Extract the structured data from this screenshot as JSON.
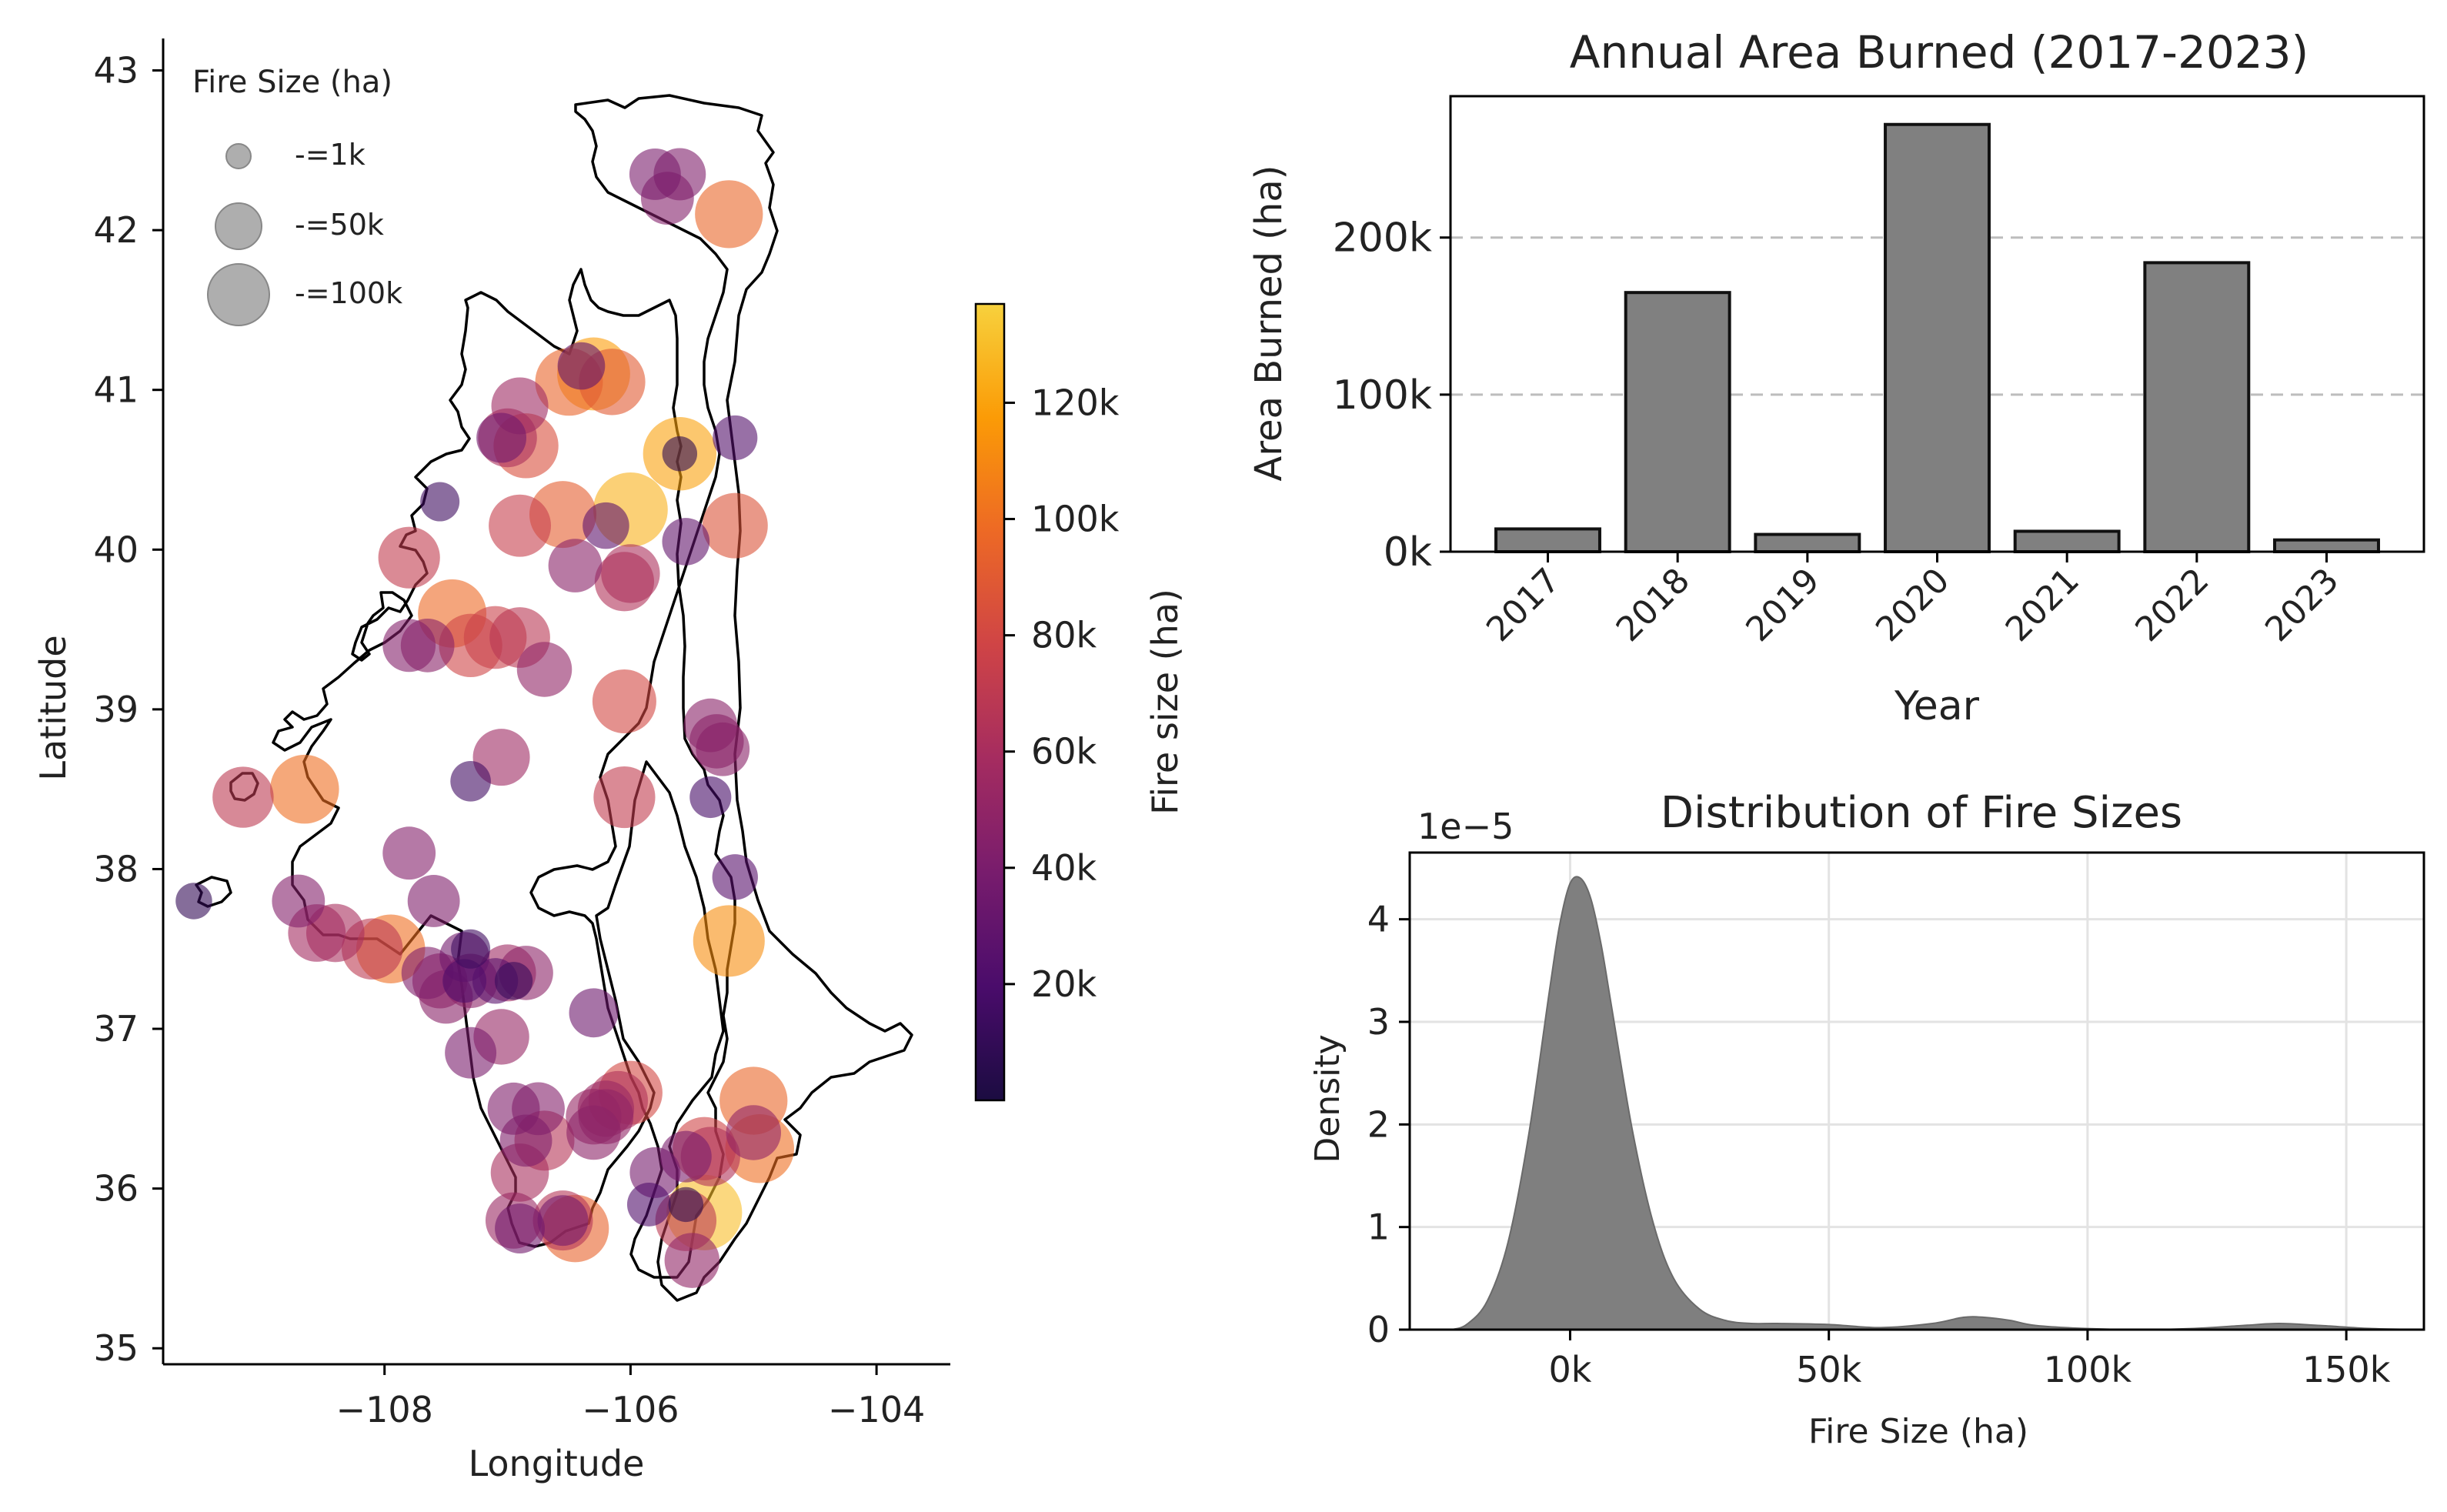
{
  "map": {
    "xlabel": "Longitude",
    "ylabel": "Latitude",
    "xlim": [
      -109.8,
      -103.4
    ],
    "ylim": [
      34.9,
      43.2
    ],
    "xticks": [
      -108,
      -106,
      -104
    ],
    "xtick_labels": [
      "−108",
      "−106",
      "−104"
    ],
    "yticks": [
      35,
      36,
      37,
      38,
      39,
      40,
      41,
      42,
      43
    ],
    "legend": {
      "title": "Fire Size (ha)",
      "entries": [
        "-=1k",
        "-=50k",
        "-=100k"
      ],
      "sizes_ha": [
        1000,
        50000,
        100000
      ]
    },
    "colorbar": {
      "label": "Fire size (ha)",
      "min": 0,
      "max": 137000,
      "ticks": [
        20000,
        40000,
        60000,
        80000,
        100000,
        120000
      ],
      "tick_labels": [
        "20k",
        "40k",
        "60k",
        "80k",
        "100k",
        "120k"
      ],
      "colormap": "inferno",
      "stops": [
        "#1b0c41",
        "#4a0c6b",
        "#781c6d",
        "#a52c60",
        "#cf4446",
        "#ed6925",
        "#fb9b06",
        "#f7d13d"
      ]
    }
  },
  "bar_chart": {
    "title": "Annual Area Burned (2017-2023)",
    "xlabel": "Year",
    "ylabel": "Area Burned (ha)",
    "yticks": [
      0,
      100000,
      200000
    ],
    "ytick_labels": [
      "0k",
      "100k",
      "200k"
    ],
    "bar_color": "#808080",
    "edge_color": "#111111"
  },
  "density_chart": {
    "title": "Distribution of Fire Sizes",
    "xlabel": "Fire Size (ha)",
    "ylabel": "Density",
    "offset_label": "1e−5",
    "xticks": [
      0,
      50000,
      100000,
      150000
    ],
    "xtick_labels": [
      "0k",
      "50k",
      "100k",
      "150k"
    ],
    "yticks": [
      0,
      1,
      2,
      3,
      4
    ],
    "ytick_labels": [
      "0",
      "1",
      "2",
      "3",
      "4"
    ],
    "fill_color": "#7f7f7f"
  },
  "chart_data": [
    {
      "type": "scatter",
      "x_label": "Longitude",
      "y_label": "Latitude",
      "points": [
        {
          "lon": -105.4,
          "lat": 35.85,
          "size": 130000
        },
        {
          "lon": -106.0,
          "lat": 40.25,
          "size": 125000
        },
        {
          "lon": -105.6,
          "lat": 40.6,
          "size": 120000
        },
        {
          "lon": -106.3,
          "lat": 41.1,
          "size": 118000
        },
        {
          "lon": -105.2,
          "lat": 37.55,
          "size": 112000
        },
        {
          "lon": -108.65,
          "lat": 38.5,
          "size": 100000
        },
        {
          "lon": -107.95,
          "lat": 37.5,
          "size": 100000
        },
        {
          "lon": -107.45,
          "lat": 39.6,
          "size": 98000
        },
        {
          "lon": -106.5,
          "lat": 41.05,
          "size": 95000
        },
        {
          "lon": -106.55,
          "lat": 40.22,
          "size": 92000
        },
        {
          "lon": -105.0,
          "lat": 36.55,
          "size": 96000
        },
        {
          "lon": -104.95,
          "lat": 36.25,
          "size": 100000
        },
        {
          "lon": -106.45,
          "lat": 35.75,
          "size": 94000
        },
        {
          "lon": -105.2,
          "lat": 42.1,
          "size": 96000
        },
        {
          "lon": -106.15,
          "lat": 41.05,
          "size": 90000
        },
        {
          "lon": -105.15,
          "lat": 40.15,
          "size": 86000
        },
        {
          "lon": -106.85,
          "lat": 40.65,
          "size": 84000
        },
        {
          "lon": -106.05,
          "lat": 39.05,
          "size": 80000
        },
        {
          "lon": -107.3,
          "lat": 39.4,
          "size": 78000
        },
        {
          "lon": -106.0,
          "lat": 36.6,
          "size": 80000
        },
        {
          "lon": -107.1,
          "lat": 39.45,
          "size": 76000
        },
        {
          "lon": -106.9,
          "lat": 40.15,
          "size": 74000
        },
        {
          "lon": -107.8,
          "lat": 39.95,
          "size": 72000
        },
        {
          "lon": -108.1,
          "lat": 37.5,
          "size": 70000
        },
        {
          "lon": -109.15,
          "lat": 38.45,
          "size": 70000
        },
        {
          "lon": -106.05,
          "lat": 38.45,
          "size": 72000
        },
        {
          "lon": -106.9,
          "lat": 39.45,
          "size": 68000
        },
        {
          "lon": -105.4,
          "lat": 36.25,
          "size": 78000
        },
        {
          "lon": -105.55,
          "lat": 35.8,
          "size": 70000
        },
        {
          "lon": -106.7,
          "lat": 36.3,
          "size": 66000
        },
        {
          "lon": -106.1,
          "lat": 36.55,
          "size": 64000
        },
        {
          "lon": -106.55,
          "lat": 35.8,
          "size": 66000
        },
        {
          "lon": -105.35,
          "lat": 36.2,
          "size": 64000
        },
        {
          "lon": -106.05,
          "lat": 39.8,
          "size": 64000
        },
        {
          "lon": -106.0,
          "lat": 39.85,
          "size": 62000
        },
        {
          "lon": -107.0,
          "lat": 40.7,
          "size": 62000
        },
        {
          "lon": -108.4,
          "lat": 37.6,
          "size": 60000
        },
        {
          "lon": -108.55,
          "lat": 37.6,
          "size": 58000
        },
        {
          "lon": -106.9,
          "lat": 36.1,
          "size": 60000
        },
        {
          "lon": -107.0,
          "lat": 37.35,
          "size": 56000
        },
        {
          "lon": -107.05,
          "lat": 38.7,
          "size": 56000
        },
        {
          "lon": -106.9,
          "lat": 40.9,
          "size": 56000
        },
        {
          "lon": -106.95,
          "lat": 35.8,
          "size": 54000
        },
        {
          "lon": -106.2,
          "lat": 36.5,
          "size": 54000
        },
        {
          "lon": -106.3,
          "lat": 36.45,
          "size": 52000
        },
        {
          "lon": -105.0,
          "lat": 36.35,
          "size": 50000
        },
        {
          "lon": -105.3,
          "lat": 38.8,
          "size": 48000
        },
        {
          "lon": -105.35,
          "lat": 38.9,
          "size": 46000
        },
        {
          "lon": -105.25,
          "lat": 38.75,
          "size": 46000
        },
        {
          "lon": -105.5,
          "lat": 35.55,
          "size": 50000
        },
        {
          "lon": -106.3,
          "lat": 36.35,
          "size": 48000
        },
        {
          "lon": -106.2,
          "lat": 36.45,
          "size": 50000
        },
        {
          "lon": -107.05,
          "lat": 36.95,
          "size": 52000
        },
        {
          "lon": -107.55,
          "lat": 37.3,
          "size": 50000
        },
        {
          "lon": -107.3,
          "lat": 37.3,
          "size": 48000
        },
        {
          "lon": -106.85,
          "lat": 37.35,
          "size": 48000
        },
        {
          "lon": -107.5,
          "lat": 37.2,
          "size": 46000
        },
        {
          "lon": -106.45,
          "lat": 39.9,
          "size": 46000
        },
        {
          "lon": -106.7,
          "lat": 39.25,
          "size": 50000
        },
        {
          "lon": -107.65,
          "lat": 39.4,
          "size": 46000
        },
        {
          "lon": -107.8,
          "lat": 39.4,
          "size": 44000
        },
        {
          "lon": -107.8,
          "lat": 38.1,
          "size": 44000
        },
        {
          "lon": -108.7,
          "lat": 37.8,
          "size": 44000
        },
        {
          "lon": -107.6,
          "lat": 37.8,
          "size": 42000
        },
        {
          "lon": -107.65,
          "lat": 37.35,
          "size": 42000
        },
        {
          "lon": -107.35,
          "lat": 37.45,
          "size": 36000
        },
        {
          "lon": -106.95,
          "lat": 36.5,
          "size": 42000
        },
        {
          "lon": -106.75,
          "lat": 36.5,
          "size": 44000
        },
        {
          "lon": -106.85,
          "lat": 36.3,
          "size": 42000
        },
        {
          "lon": -107.3,
          "lat": 36.85,
          "size": 40000
        },
        {
          "lon": -106.3,
          "lat": 37.1,
          "size": 34000
        },
        {
          "lon": -105.55,
          "lat": 36.2,
          "size": 40000
        },
        {
          "lon": -105.8,
          "lat": 36.1,
          "size": 38000
        },
        {
          "lon": -106.9,
          "lat": 35.75,
          "size": 36000
        },
        {
          "lon": -106.55,
          "lat": 35.8,
          "size": 38000
        },
        {
          "lon": -105.7,
          "lat": 42.2,
          "size": 44000
        },
        {
          "lon": -105.8,
          "lat": 42.35,
          "size": 40000
        },
        {
          "lon": -105.6,
          "lat": 42.35,
          "size": 42000
        },
        {
          "lon": -107.05,
          "lat": 40.7,
          "size": 36000
        },
        {
          "lon": -106.4,
          "lat": 41.15,
          "size": 30000
        },
        {
          "lon": -105.55,
          "lat": 40.05,
          "size": 30000
        },
        {
          "lon": -106.2,
          "lat": 40.15,
          "size": 28000
        },
        {
          "lon": -105.15,
          "lat": 40.7,
          "size": 24000
        },
        {
          "lon": -107.35,
          "lat": 37.3,
          "size": 22000
        },
        {
          "lon": -107.3,
          "lat": 38.55,
          "size": 16000
        },
        {
          "lon": -105.15,
          "lat": 37.95,
          "size": 26000
        },
        {
          "lon": -105.35,
          "lat": 38.45,
          "size": 18000
        },
        {
          "lon": -105.85,
          "lat": 35.9,
          "size": 22000
        },
        {
          "lon": -107.1,
          "lat": 37.3,
          "size": 26000
        },
        {
          "lon": -105.6,
          "lat": 40.6,
          "size": 8000
        },
        {
          "lon": -105.55,
          "lat": 35.9,
          "size": 8000
        },
        {
          "lon": -106.95,
          "lat": 37.3,
          "size": 12000
        },
        {
          "lon": -107.3,
          "lat": 37.5,
          "size": 14000
        },
        {
          "lon": -107.55,
          "lat": 40.3,
          "size": 14000
        },
        {
          "lon": -109.55,
          "lat": 37.8,
          "size": 10000
        }
      ]
    },
    {
      "type": "bar",
      "title": "Annual Area Burned (2017-2023)",
      "xlabel": "Year",
      "ylabel": "Area Burned (ha)",
      "categories": [
        "2017",
        "2018",
        "2019",
        "2020",
        "2021",
        "2022",
        "2023"
      ],
      "values": [
        14500,
        165000,
        11000,
        272000,
        13000,
        184000,
        7500
      ],
      "ylim": [
        0,
        290000
      ],
      "grid": "y dashed at 100k, 200k"
    },
    {
      "type": "area",
      "title": "Distribution of Fire Sizes",
      "xlabel": "Fire Size (ha)",
      "ylabel": "Density",
      "x": [
        -23000,
        -20000,
        -16000,
        -12000,
        -8000,
        -4000,
        -2000,
        0,
        2000,
        4000,
        6000,
        8000,
        12000,
        16000,
        20000,
        25000,
        30000,
        35000,
        40000,
        50000,
        60000,
        70000,
        76000,
        80000,
        85000,
        90000,
        100000,
        110000,
        120000,
        130000,
        137000,
        145000,
        155000,
        165000
      ],
      "y": [
        0.0,
        0.05,
        0.28,
        0.85,
        1.9,
        3.3,
        3.95,
        4.35,
        4.4,
        4.2,
        3.75,
        3.15,
        1.95,
        1.05,
        0.5,
        0.2,
        0.09,
        0.06,
        0.06,
        0.05,
        0.02,
        0.06,
        0.12,
        0.12,
        0.09,
        0.04,
        0.01,
        0.0,
        0.01,
        0.04,
        0.06,
        0.04,
        0.01,
        0.0
      ],
      "y_units": "1e-5",
      "xlim": [
        -31000,
        165000
      ],
      "ylim": [
        0,
        4.65
      ],
      "grid": true
    }
  ]
}
